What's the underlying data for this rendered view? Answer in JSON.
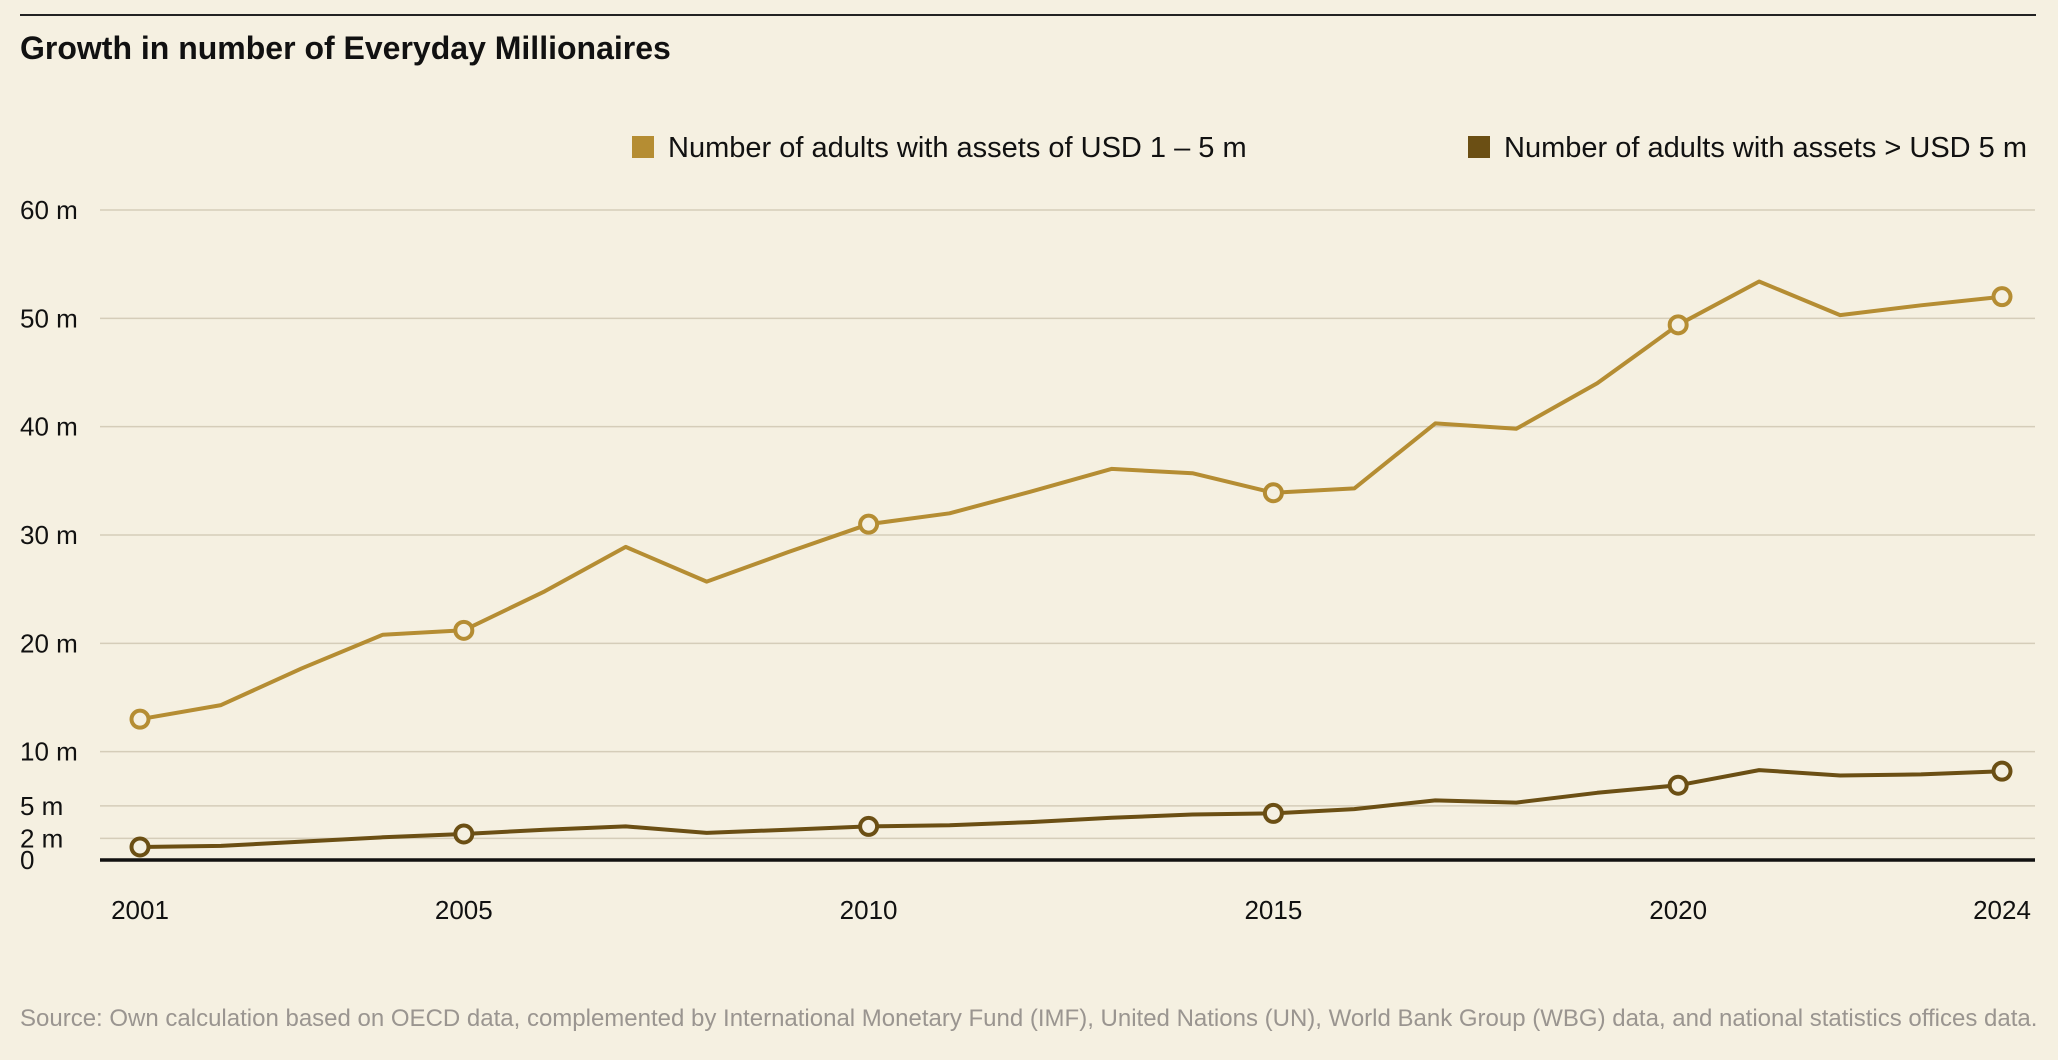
{
  "title": "Growth in number of Everyday Millionaires",
  "source": "Source: Own calculation based on OECD data, complemented by International Monetary Fund (IMF), United Nations (UN), World Bank Group (WBG) data, and national statistics offices data.",
  "chart_data": {
    "type": "line",
    "title": "Growth in number of Everyday Millionaires",
    "xlabel": "",
    "ylabel": "",
    "xlim": [
      2001,
      2024
    ],
    "ylim": [
      0,
      60
    ],
    "grid": true,
    "legend_position": "top",
    "y_ticks": [
      {
        "value": 60,
        "label": "60 m"
      },
      {
        "value": 50,
        "label": "50 m"
      },
      {
        "value": 40,
        "label": "40 m"
      },
      {
        "value": 30,
        "label": "30 m"
      },
      {
        "value": 20,
        "label": "20 m"
      },
      {
        "value": 10,
        "label": "10 m"
      },
      {
        "value": 5,
        "label": "5 m"
      },
      {
        "value": 2,
        "label": "2 m"
      },
      {
        "value": 0,
        "label": "0"
      }
    ],
    "x_ticks": [
      {
        "value": 2001,
        "label": "2001"
      },
      {
        "value": 2005,
        "label": "2005"
      },
      {
        "value": 2010,
        "label": "2010"
      },
      {
        "value": 2015,
        "label": "2015"
      },
      {
        "value": 2020,
        "label": "2020"
      },
      {
        "value": 2024,
        "label": "2024"
      }
    ],
    "x": [
      2001,
      2002,
      2003,
      2004,
      2005,
      2006,
      2007,
      2008,
      2009,
      2010,
      2011,
      2012,
      2013,
      2014,
      2015,
      2016,
      2017,
      2018,
      2019,
      2020,
      2021,
      2022,
      2023,
      2024
    ],
    "marker_years": [
      2001,
      2005,
      2010,
      2015,
      2020,
      2024
    ],
    "series": [
      {
        "name": "Number of adults with assets of USD 1 – 5 m",
        "color": "#b58d33",
        "values": [
          13.0,
          14.3,
          17.7,
          20.8,
          21.2,
          24.8,
          28.9,
          25.7,
          28.4,
          31.0,
          32.0,
          34.0,
          36.1,
          35.7,
          33.9,
          34.3,
          40.3,
          39.8,
          44.0,
          49.4,
          53.4,
          50.3,
          51.2,
          52.0
        ]
      },
      {
        "name": "Number of adults with assets > USD 5 m",
        "color": "#6b4f14",
        "values": [
          1.2,
          1.3,
          1.7,
          2.1,
          2.4,
          2.8,
          3.1,
          2.5,
          2.8,
          3.1,
          3.2,
          3.5,
          3.9,
          4.2,
          4.3,
          4.7,
          5.5,
          5.3,
          6.2,
          6.9,
          8.3,
          7.8,
          7.9,
          8.2
        ]
      }
    ]
  }
}
